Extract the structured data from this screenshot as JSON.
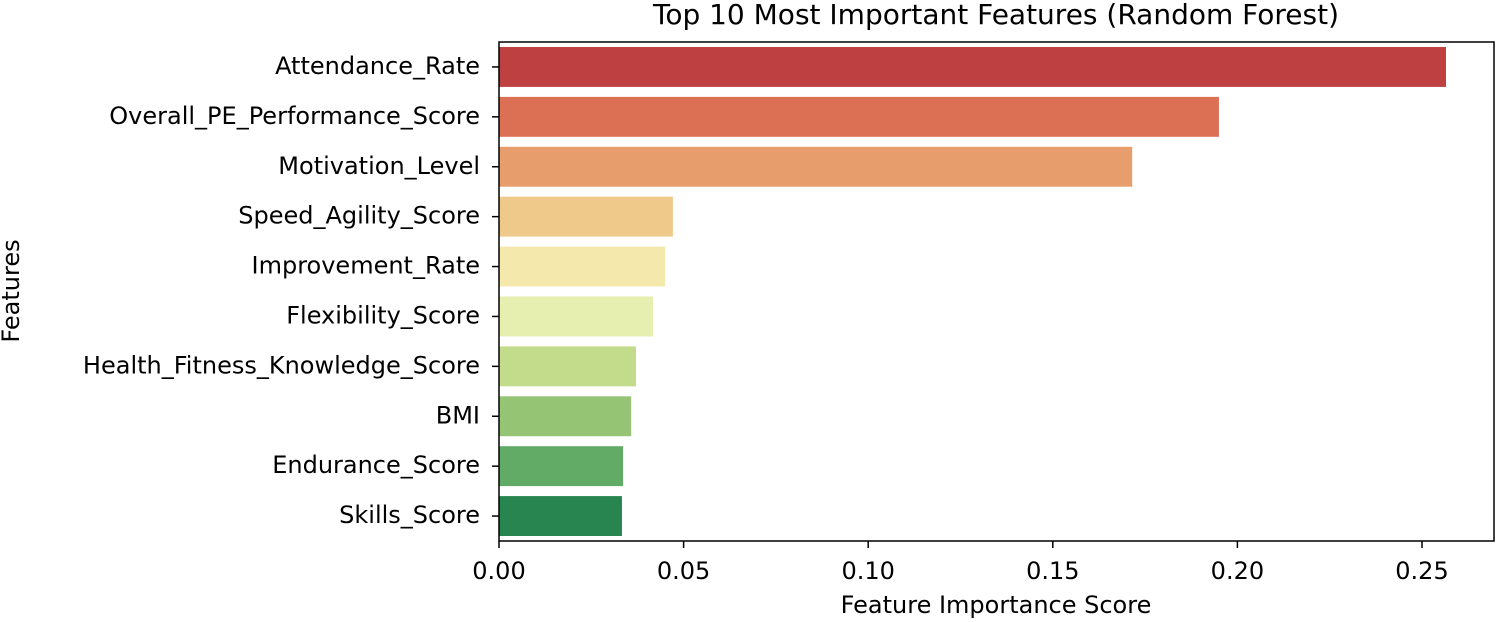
{
  "chart_data": {
    "type": "barh",
    "title": "Top 10 Most Important Features (Random Forest)",
    "xlabel": "Feature Importance Score",
    "ylabel": "Features",
    "categories": [
      "Attendance_Rate",
      "Overall_PE_Performance_Score",
      "Motivation_Level",
      "Speed_Agility_Score",
      "Improvement_Rate",
      "Flexibility_Score",
      "Health_Fitness_Knowledge_Score",
      "BMI",
      "Endurance_Score",
      "Skills_Score"
    ],
    "values": [
      0.2565,
      0.195,
      0.1715,
      0.0471,
      0.045,
      0.0417,
      0.0371,
      0.0358,
      0.0336,
      0.0333
    ],
    "colors": [
      "#be4040",
      "#dc7055",
      "#e89d6c",
      "#eec98a",
      "#f4e8ad",
      "#e6efb0",
      "#c3dc8b",
      "#96c475",
      "#62ab67",
      "#28854f"
    ],
    "xlim": [
      0,
      0.2695
    ],
    "xticks": [
      {
        "value": 0,
        "label": "0.00"
      },
      {
        "value": 0.05,
        "label": "0.05"
      },
      {
        "value": 0.1,
        "label": "0.10"
      },
      {
        "value": 0.15,
        "label": "0.15"
      },
      {
        "value": 0.2,
        "label": "0.20"
      },
      {
        "value": 0.25,
        "label": "0.25"
      }
    ]
  }
}
